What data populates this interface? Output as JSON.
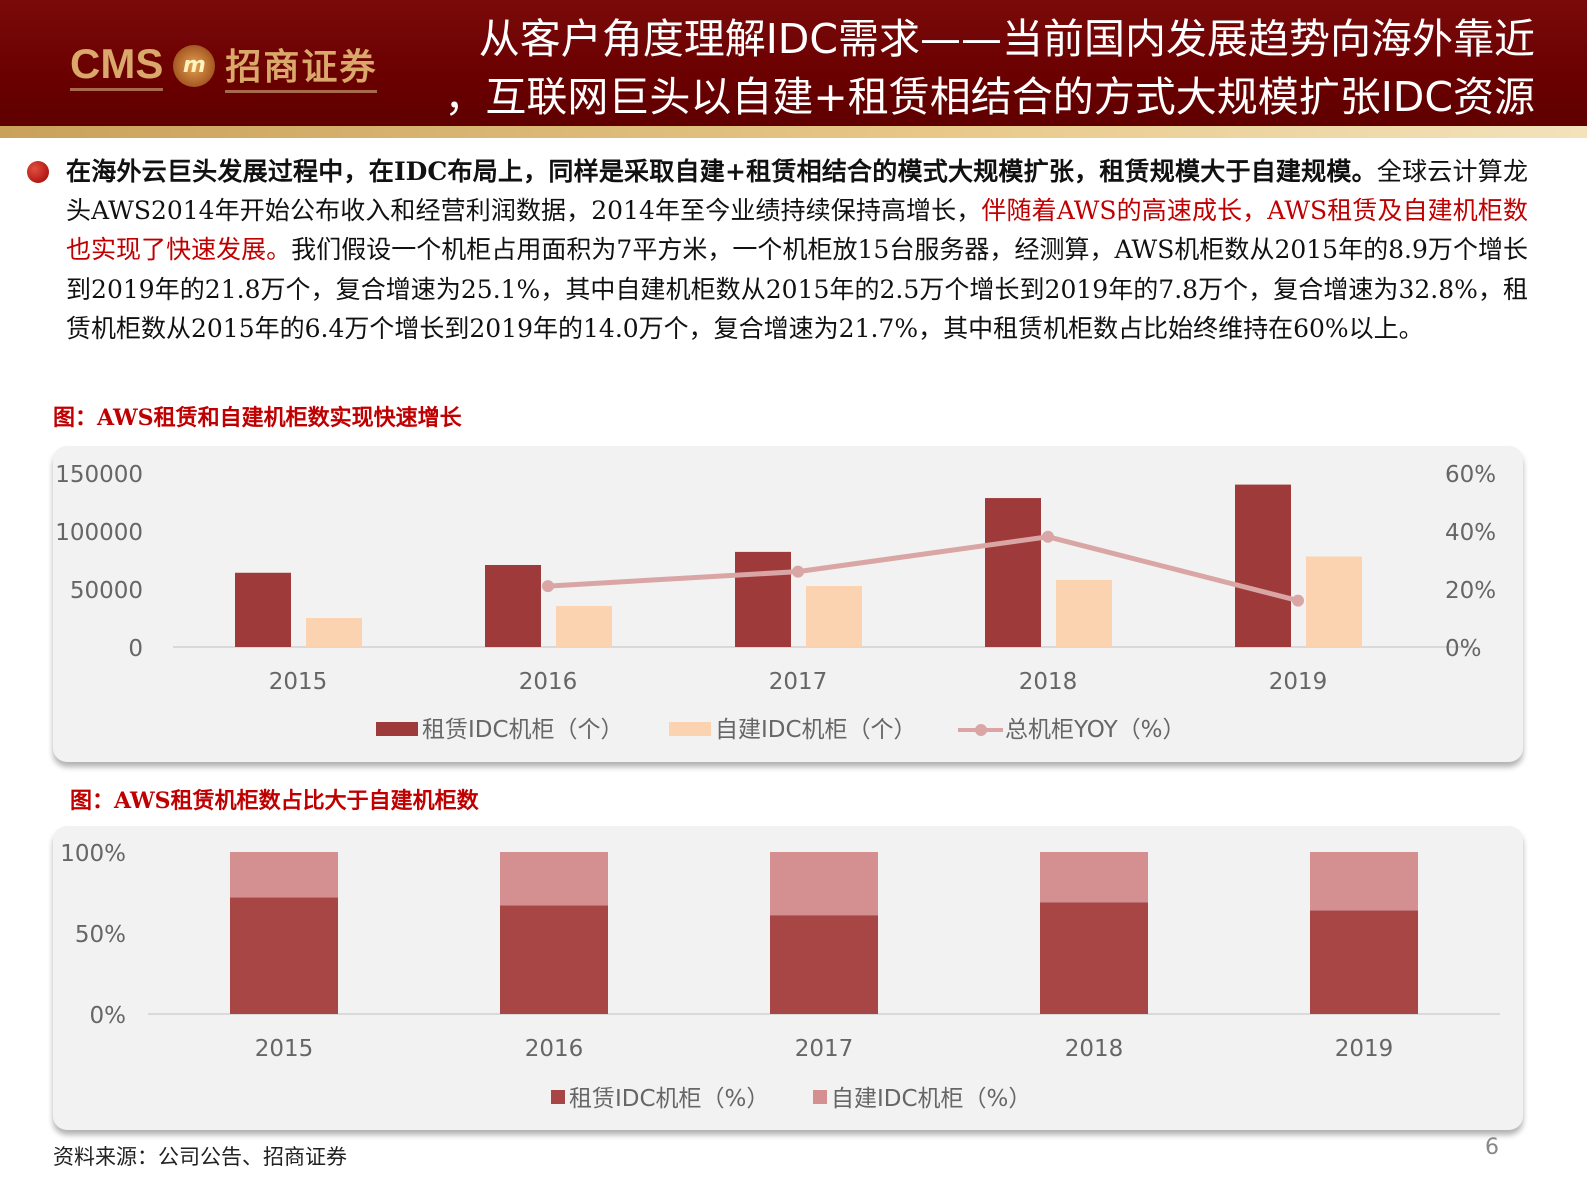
{
  "header": {
    "logo_text": "CMS 招商证券",
    "title_line1": "从客户角度理解IDC需求——当前国内发展趋势向海外靠近",
    "title_line2": "，互联网巨头以自建+租赁相结合的方式大规模扩张IDC资源"
  },
  "body": {
    "bold": "在海外云巨头发展过程中，在IDC布局上，同样是采取自建+租赁相结合的模式大规模扩张，租赁规模大于自建规模。",
    "normal1": "全球云计算龙头AWS2014年开始公布收入和经营利润数据，2014年至今业绩持续保持高增长，",
    "red": "伴随着AWS的高速成长，AWS租赁及自建机柜数也实现了快速发展。",
    "normal2": "我们假设一个机柜占用面积为7平方米，一个机柜放15台服务器，经测算，AWS机柜数从2015年的8.9万个增长到2019年的21.8万个，复合增速为25.1%，其中自建机柜数从2015年的2.5万个增长到2019年的7.8万个，复合增速为32.8%，租赁机柜数从2015年的6.4万个增长到2019年的14.0万个，复合增速为21.7%，其中租赁机柜数占比始终维持在60%以上。"
  },
  "colors": {
    "lease": "#9e3b3a",
    "self": "#fbd3b1",
    "yoy": "#d9a6a5",
    "lease_pct": "#a84646",
    "self_pct": "#d49090"
  },
  "chart_data": [
    {
      "type": "bar",
      "title": "图：AWS租赁和自建机柜数实现快速增长",
      "categories": [
        "2015",
        "2016",
        "2017",
        "2018",
        "2019"
      ],
      "ylim": [
        0,
        150000
      ],
      "yticks": [
        "0",
        "50000",
        "100000",
        "150000"
      ],
      "y2lim": [
        0,
        0.6
      ],
      "y2ticks": [
        "0%",
        "20%",
        "40%",
        "60%"
      ],
      "series": [
        {
          "name": "租赁IDC机柜（个）",
          "values": [
            64000,
            70700,
            82000,
            128400,
            140000
          ],
          "axis": "left",
          "kind": "bar"
        },
        {
          "name": "自建IDC机柜（个）",
          "values": [
            25000,
            35300,
            52600,
            57800,
            78000
          ],
          "axis": "left",
          "kind": "bar"
        },
        {
          "name": "总机柜YOY（%）",
          "values": [
            null,
            0.21,
            0.26,
            0.38,
            0.16
          ],
          "axis": "right",
          "kind": "line"
        }
      ],
      "legend": "bottom"
    },
    {
      "type": "bar",
      "stacked": true,
      "title": "图：AWS租赁机柜数占比大于自建机柜数",
      "categories": [
        "2015",
        "2016",
        "2017",
        "2018",
        "2019"
      ],
      "ylim": [
        0,
        1
      ],
      "yticks": [
        "0%",
        "50%",
        "100%"
      ],
      "series": [
        {
          "name": "租赁IDC机柜（%）",
          "values": [
            0.72,
            0.67,
            0.61,
            0.69,
            0.64
          ]
        },
        {
          "name": "自建IDC机柜（%）",
          "values": [
            0.28,
            0.33,
            0.39,
            0.31,
            0.36
          ]
        }
      ],
      "legend": "bottom"
    }
  ],
  "footer": {
    "source": "资料来源：公司公告、招商证券",
    "page": "6"
  }
}
